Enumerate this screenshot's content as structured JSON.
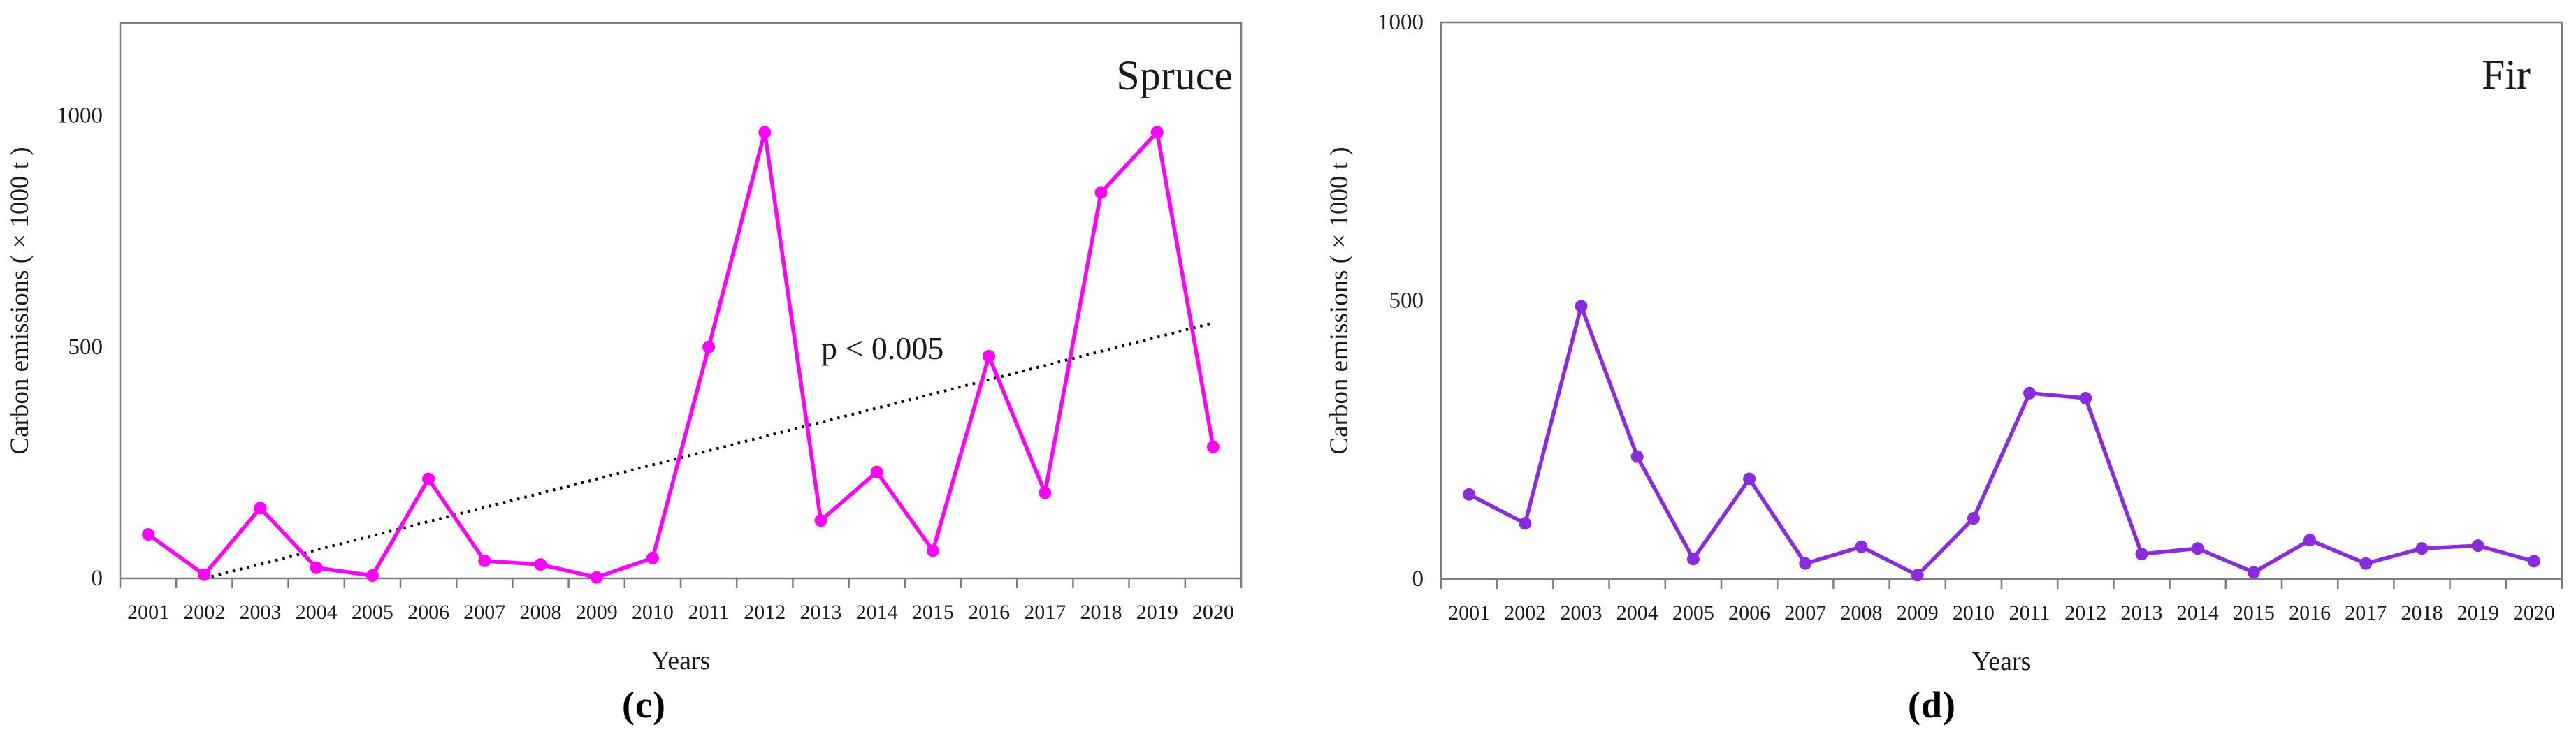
{
  "figure": {
    "background_color": "#ffffff",
    "text_color": "#1a1a1a",
    "axis_color": "#7d7d7d",
    "trend_color": "#000000",
    "panels": [
      {
        "id": "spruce",
        "caption": "(c)"
      },
      {
        "id": "fir",
        "caption": "(d)"
      }
    ]
  },
  "chart_data": [
    {
      "type": "line",
      "title": "Spruce",
      "xlabel": "Years",
      "ylabel": "Carbon emissions ( × 1000 t )",
      "categories": [
        "2001",
        "2002",
        "2003",
        "2004",
        "2005",
        "2006",
        "2007",
        "2008",
        "2009",
        "2010",
        "2011",
        "2012",
        "2013",
        "2014",
        "2015",
        "2016",
        "2017",
        "2018",
        "2019",
        "2020"
      ],
      "values": [
        95,
        8,
        152,
        23,
        6,
        215,
        38,
        30,
        2,
        44,
        500,
        964,
        125,
        230,
        60,
        480,
        185,
        834,
        964,
        284
      ],
      "ylim": [
        0,
        1200
      ],
      "yticks": [
        0,
        500,
        1000
      ],
      "line_color": "#ff00ff",
      "grid": false,
      "frame": true,
      "trendline": {
        "style": "dotted",
        "start_index": 1,
        "start_value": 0,
        "end_index": 19,
        "end_value": 552
      },
      "annotation": {
        "text": "p < 0.005",
        "at_index": 13.1,
        "at_value": 495
      }
    },
    {
      "type": "line",
      "title": "Fir",
      "xlabel": "Years",
      "ylabel": "Carbon emissions ( × 1000 t )",
      "categories": [
        "2001",
        "2002",
        "2003",
        "2004",
        "2005",
        "2006",
        "2007",
        "2008",
        "2009",
        "2010",
        "2011",
        "2012",
        "2013",
        "2014",
        "2015",
        "2016",
        "2017",
        "2018",
        "2019",
        "2020"
      ],
      "values": [
        152,
        100,
        490,
        220,
        36,
        180,
        28,
        58,
        7,
        109,
        334,
        325,
        45,
        55,
        12,
        70,
        28,
        55,
        60,
        32
      ],
      "ylim": [
        0,
        1000
      ],
      "yticks": [
        0,
        500,
        1000
      ],
      "line_color": "#8a2be2",
      "grid": false,
      "frame": true,
      "trendline": null,
      "annotation": null
    }
  ]
}
